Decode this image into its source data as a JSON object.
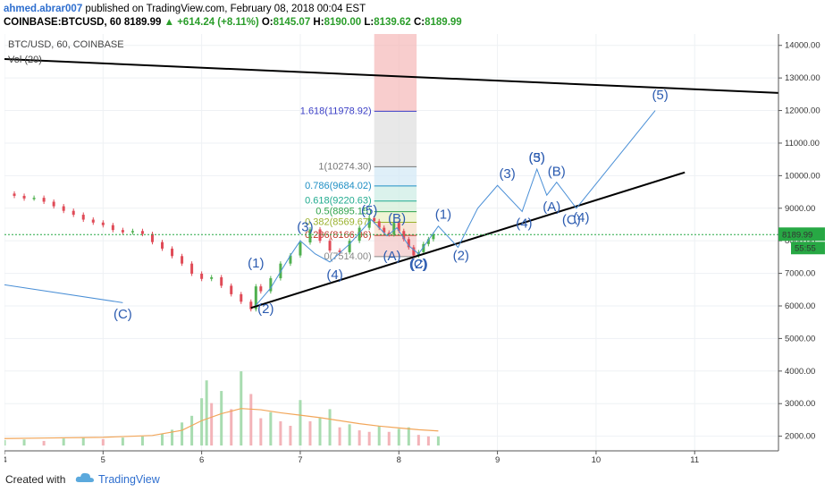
{
  "header": {
    "author": "ahmed.abrar007",
    "published": "published on TradingView.com, February 08, 2018 00:04 EST",
    "symbol": "COINBASE:BTCUSD, 60",
    "last": "8189.99",
    "change": "+614.24 (+8.11%)",
    "o_label": "O:",
    "o_value": "8145.07",
    "h_label": "H:",
    "h_value": "8190.00",
    "l_label": "L:",
    "l_value": "8139.62",
    "c_label": "C:",
    "c_value": "8189.99"
  },
  "legend": {
    "title": "BTC/USD, 60, COINBASE",
    "volume": "Vol (20)"
  },
  "footer": {
    "created_with": "Created with",
    "brand": "TradingView"
  },
  "colors": {
    "up": "#4fb04f",
    "down": "#e04b57",
    "wave": "#4a8fd6",
    "label": "#2b5bb0",
    "trend": "#000000",
    "price_tag": "#27a844"
  },
  "chart_data": {
    "type": "candlestick",
    "title": "BTC/USD, 60, COINBASE",
    "y_axis": {
      "ticks": [
        2000,
        3000,
        4000,
        5000,
        6000,
        7000,
        8000,
        9000,
        10000,
        11000,
        12000,
        13000,
        14000
      ],
      "tick_labels": [
        "2000.00",
        "3000.00",
        "4000.00",
        "5000.00",
        "6000.00",
        "7000.00",
        "8000.00",
        "9000.00",
        "10000.00",
        "11000.00",
        "12000.00",
        "13000.00",
        "14000.00"
      ],
      "range": [
        1550,
        14350
      ]
    },
    "x_axis": {
      "ticks": [
        4,
        5,
        6,
        7,
        8,
        9,
        10,
        11
      ],
      "tick_labels": [
        "4",
        "5",
        "6",
        "7",
        "8",
        "9",
        "10",
        "11"
      ],
      "range": [
        4,
        11.85
      ]
    },
    "last_price": {
      "value": 8189.99,
      "label": "8189.99",
      "countdown": "55:55"
    },
    "price_closes": [
      [
        4.0,
        9450
      ],
      [
        4.1,
        9380
      ],
      [
        4.2,
        9300
      ],
      [
        4.3,
        9320
      ],
      [
        4.4,
        9200
      ],
      [
        4.5,
        9060
      ],
      [
        4.6,
        8920
      ],
      [
        4.7,
        8800
      ],
      [
        4.8,
        8650
      ],
      [
        4.9,
        8560
      ],
      [
        5.0,
        8480
      ],
      [
        5.1,
        8330
      ],
      [
        5.2,
        8260
      ],
      [
        5.3,
        8300
      ],
      [
        5.4,
        8210
      ],
      [
        5.5,
        7960
      ],
      [
        5.6,
        7760
      ],
      [
        5.7,
        7530
      ],
      [
        5.8,
        7300
      ],
      [
        5.9,
        6990
      ],
      [
        6.0,
        6830
      ],
      [
        6.1,
        6880
      ],
      [
        6.2,
        6620
      ],
      [
        6.3,
        6360
      ],
      [
        6.4,
        6130
      ],
      [
        6.5,
        5900
      ],
      [
        6.55,
        6600
      ],
      [
        6.6,
        6450
      ],
      [
        6.7,
        6850
      ],
      [
        6.8,
        7300
      ],
      [
        6.9,
        7550
      ],
      [
        7.0,
        7950
      ],
      [
        7.1,
        8350
      ],
      [
        7.2,
        8000
      ],
      [
        7.3,
        7700
      ],
      [
        7.4,
        7650
      ],
      [
        7.5,
        8000
      ],
      [
        7.6,
        8400
      ],
      [
        7.7,
        8700
      ],
      [
        7.75,
        8600
      ],
      [
        7.8,
        8400
      ],
      [
        7.85,
        8250
      ],
      [
        7.9,
        8200
      ],
      [
        7.95,
        8550
      ],
      [
        8.0,
        8300
      ],
      [
        8.05,
        8050
      ],
      [
        8.1,
        7800
      ],
      [
        8.15,
        7550
      ],
      [
        8.2,
        7650
      ],
      [
        8.25,
        7900
      ],
      [
        8.3,
        8050
      ],
      [
        8.35,
        8190
      ]
    ],
    "volume": [
      [
        4.0,
        180
      ],
      [
        4.2,
        200
      ],
      [
        4.4,
        150
      ],
      [
        4.6,
        230
      ],
      [
        4.8,
        260
      ],
      [
        5.0,
        210
      ],
      [
        5.2,
        260
      ],
      [
        5.4,
        300
      ],
      [
        5.6,
        380
      ],
      [
        5.7,
        520
      ],
      [
        5.8,
        760
      ],
      [
        5.9,
        980
      ],
      [
        6.0,
        1560
      ],
      [
        6.05,
        2150
      ],
      [
        6.1,
        1400
      ],
      [
        6.2,
        1800
      ],
      [
        6.3,
        1200
      ],
      [
        6.4,
        2450
      ],
      [
        6.5,
        1700
      ],
      [
        6.6,
        900
      ],
      [
        6.7,
        1100
      ],
      [
        6.8,
        800
      ],
      [
        6.9,
        650
      ],
      [
        7.0,
        1500
      ],
      [
        7.1,
        800
      ],
      [
        7.2,
        900
      ],
      [
        7.3,
        1200
      ],
      [
        7.4,
        600
      ],
      [
        7.5,
        700
      ],
      [
        7.6,
        500
      ],
      [
        7.7,
        450
      ],
      [
        7.8,
        650
      ],
      [
        7.9,
        450
      ],
      [
        8.0,
        550
      ],
      [
        8.1,
        600
      ],
      [
        8.2,
        350
      ],
      [
        8.3,
        300
      ],
      [
        8.4,
        300
      ]
    ],
    "volume_ma": [
      [
        4.0,
        230
      ],
      [
        4.5,
        250
      ],
      [
        5.0,
        270
      ],
      [
        5.5,
        330
      ],
      [
        5.8,
        500
      ],
      [
        6.0,
        820
      ],
      [
        6.2,
        1050
      ],
      [
        6.4,
        1220
      ],
      [
        6.6,
        1180
      ],
      [
        6.8,
        1080
      ],
      [
        7.0,
        1000
      ],
      [
        7.2,
        920
      ],
      [
        7.4,
        820
      ],
      [
        7.6,
        720
      ],
      [
        7.8,
        640
      ],
      [
        8.0,
        580
      ],
      [
        8.2,
        520
      ],
      [
        8.4,
        480
      ]
    ],
    "trendlines": [
      {
        "name": "upper",
        "points": [
          [
            4.0,
            13580
          ],
          [
            11.85,
            12540
          ]
        ]
      },
      {
        "name": "lower",
        "points": [
          [
            6.5,
            5940
          ],
          [
            10.9,
            10100
          ]
        ]
      }
    ],
    "wave_path": [
      [
        6.55,
        6020
      ],
      [
        6.7,
        6550
      ],
      [
        6.9,
        7550
      ],
      [
        7.0,
        8000
      ],
      [
        7.15,
        7600
      ],
      [
        7.3,
        7350
      ],
      [
        7.5,
        7900
      ],
      [
        7.72,
        8650
      ],
      [
        7.88,
        8150
      ],
      [
        7.98,
        8400
      ],
      [
        8.1,
        7850
      ],
      [
        8.2,
        7600
      ],
      [
        8.4,
        8450
      ],
      [
        8.6,
        7800
      ],
      [
        8.8,
        9000
      ],
      [
        9.0,
        9700
      ],
      [
        9.25,
        8900
      ],
      [
        9.4,
        10200
      ],
      [
        9.5,
        9400
      ],
      [
        9.6,
        9800
      ],
      [
        9.8,
        9000
      ],
      [
        10.6,
        12000
      ]
    ],
    "wave_c_line": [
      [
        4.0,
        6650
      ],
      [
        5.2,
        6100
      ]
    ],
    "wave_labels": [
      {
        "text": "(C)",
        "x": 5.2,
        "y": 5620
      },
      {
        "text": "(1)",
        "x": 6.55,
        "y": 7180
      },
      {
        "text": "(2)",
        "x": 6.65,
        "y": 5780
      },
      {
        "text": "(3)",
        "x": 7.05,
        "y": 8300
      },
      {
        "text": "(4)",
        "x": 7.35,
        "y": 6830
      },
      {
        "text": "(5)",
        "x": 7.7,
        "y": 8800
      },
      {
        "text": "(B)",
        "x": 7.98,
        "y": 8550
      },
      {
        "text": "(A)",
        "x": 7.93,
        "y": 7400
      },
      {
        "text": "(2)",
        "x": 8.2,
        "y": 7150
      },
      {
        "text": "(C)",
        "x": 8.2,
        "y": 7150
      },
      {
        "text": "(1)",
        "x": 8.45,
        "y": 8680
      },
      {
        "text": "(2)",
        "x": 8.63,
        "y": 7420
      },
      {
        "text": "(3)",
        "x": 9.1,
        "y": 9930
      },
      {
        "text": "(4)",
        "x": 9.27,
        "y": 8410
      },
      {
        "text": "(5)",
        "x": 9.4,
        "y": 10420
      },
      {
        "text": "(3)",
        "x": 9.4,
        "y": 10420
      },
      {
        "text": "(B)",
        "x": 9.6,
        "y": 10000
      },
      {
        "text": "(A)",
        "x": 9.55,
        "y": 8910
      },
      {
        "text": "(C)",
        "x": 9.75,
        "y": 8510
      },
      {
        "text": "(4)",
        "x": 9.85,
        "y": 8580
      },
      {
        "text": "(5)",
        "x": 10.65,
        "y": 12350
      }
    ],
    "fib_levels": [
      {
        "label": "0(7514.00)",
        "value": 7514,
        "color": "#888888"
      },
      {
        "label": "0.236(8166.96)",
        "value": 8166.96,
        "color": "#c0392b"
      },
      {
        "label": "0.382(8569.67)",
        "value": 8569.67,
        "color": "#9ab12d"
      },
      {
        "label": "0.5(8895.15)",
        "value": 8895.15,
        "color": "#2ea24b"
      },
      {
        "label": "0.618(9220.63)",
        "value": 9220.63,
        "color": "#1faa8e"
      },
      {
        "label": "0.786(9684.02)",
        "value": 9684.02,
        "color": "#1f8fc4"
      },
      {
        "label": "1(10274.30)",
        "value": 10274.3,
        "color": "#777777"
      },
      {
        "label": "1.618(11978.92)",
        "value": 11978.92,
        "color": "#3b3fc6"
      }
    ],
    "fib_box": {
      "x_start": 7.75,
      "x_end": 8.18,
      "top": 14350
    }
  }
}
